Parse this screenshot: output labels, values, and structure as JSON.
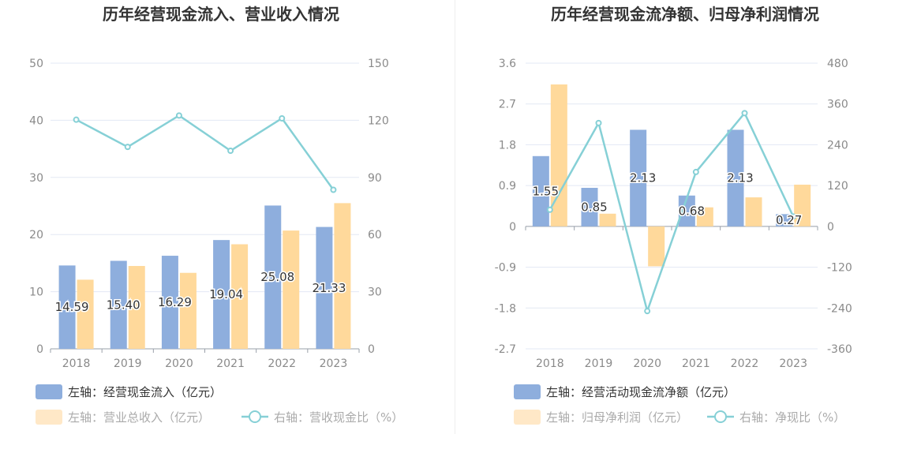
{
  "chart_data": [
    {
      "type": "bar",
      "title": "历年经营现金流入、营业收入情况",
      "categories": [
        "2018",
        "2019",
        "2020",
        "2021",
        "2022",
        "2023"
      ],
      "y_left": {
        "min": 0,
        "max": 50,
        "ticks": [
          "0",
          "10",
          "20",
          "30",
          "40",
          "50"
        ]
      },
      "y_right": {
        "min": 0,
        "max": 150,
        "ticks": [
          "0",
          "30",
          "60",
          "90",
          "120",
          "150"
        ]
      },
      "grid": true,
      "legend_position": "bottom-left",
      "series": [
        {
          "name": "左轴：经营现金流入（亿元）",
          "type": "bar",
          "axis": "left",
          "color": "#8eaedd",
          "values": [
            14.59,
            15.4,
            16.29,
            19.04,
            25.08,
            21.33
          ],
          "labels": [
            "14.59",
            "15.40",
            "16.29",
            "19.04",
            "25.08",
            "21.33"
          ]
        },
        {
          "name": "左轴：营业总收入（亿元）",
          "type": "bar",
          "axis": "left",
          "color": "#ffd99b",
          "values": [
            12.1,
            14.5,
            13.3,
            18.3,
            20.7,
            25.5
          ]
        },
        {
          "name": "右轴：营收现金比（%）",
          "type": "line",
          "axis": "right",
          "color": "#86d0d6",
          "values": [
            120.3,
            106.0,
            122.5,
            104.0,
            121.0,
            83.5
          ]
        }
      ]
    },
    {
      "type": "bar",
      "title": "历年经营现金流净额、归母净利润情况",
      "categories": [
        "2018",
        "2019",
        "2020",
        "2021",
        "2022",
        "2023"
      ],
      "y_left": {
        "min": -2.7,
        "max": 3.6,
        "ticks": [
          "-2.7",
          "-1.8",
          "-0.9",
          "0",
          "0.9",
          "1.8",
          "2.7",
          "3.6"
        ]
      },
      "y_right": {
        "min": -360,
        "max": 480,
        "ticks": [
          "-360",
          "-240",
          "-120",
          "0",
          "120",
          "240",
          "360",
          "480"
        ]
      },
      "grid": true,
      "legend_position": "bottom-left",
      "series": [
        {
          "name": "左轴：经营活动现金流净额（亿元）",
          "type": "bar",
          "axis": "left",
          "color": "#8eaedd",
          "values": [
            1.55,
            0.85,
            2.13,
            0.68,
            2.13,
            0.27
          ],
          "labels": [
            "1.55",
            "0.85",
            "2.13",
            "0.68",
            "2.13",
            "0.27"
          ]
        },
        {
          "name": "左轴：归母净利润（亿元）",
          "type": "bar",
          "axis": "left",
          "color": "#ffd99b",
          "values": [
            3.13,
            0.28,
            -0.88,
            0.42,
            0.64,
            0.92
          ]
        },
        {
          "name": "右轴：净现比（%）",
          "type": "line",
          "axis": "right",
          "color": "#86d0d6",
          "values": [
            49,
            304,
            -249,
            160,
            333,
            29
          ]
        }
      ]
    }
  ]
}
